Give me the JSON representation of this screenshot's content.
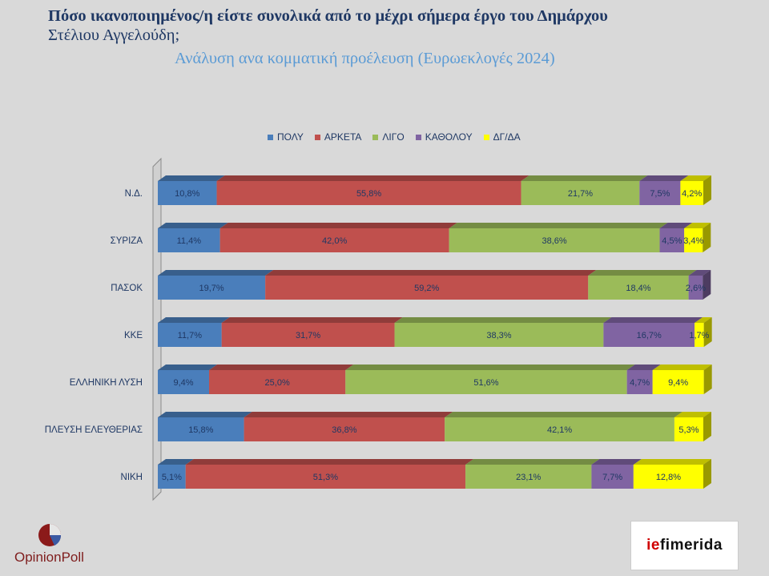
{
  "title_line1": "Πόσο ικανοποιημένος/η είστε συνολικά  από το μέχρι σήμερα έργο του Δημάρχου",
  "title_line2": "Στέλιου Αγγελούδη;",
  "subtitle": "Ανάλυση ανα κομματική προέλευση (Ευρωεκλογές 2024)",
  "logos": {
    "opinionpoll": "OpinionPoll",
    "iefimerida_prefix": "ie",
    "iefimerida_rest": "fimerida"
  },
  "chart_data": {
    "type": "bar",
    "orientation": "horizontal",
    "stacked": "percent",
    "categories": [
      "Ν.Δ.",
      "ΣΥΡΙΖΑ",
      "ΠΑΣΟΚ",
      "ΚΚΕ",
      "ΕΛΛΗΝΙΚΗ ΛΥΣΗ",
      "ΠΛΕΥΣΗ ΕΛΕΥΘΕΡΙΑΣ",
      "ΝΙΚΗ"
    ],
    "legend_position": "top",
    "series": [
      {
        "name": "ΠΟΛΥ",
        "color": "#4a7ebb",
        "values": [
          10.8,
          11.4,
          19.7,
          11.7,
          9.4,
          15.8,
          5.1
        ],
        "labels": [
          "10,8%",
          "11,4%",
          "19,7%",
          "11,7%",
          "9,4%",
          "15,8%",
          "5,1%"
        ]
      },
      {
        "name": "ΑΡΚΕΤΑ",
        "color": "#c0504d",
        "values": [
          55.8,
          42.0,
          59.2,
          31.7,
          25.0,
          36.8,
          51.3
        ],
        "labels": [
          "55,8%",
          "42,0%",
          "59,2%",
          "31,7%",
          "25,0%",
          "36,8%",
          "51,3%"
        ]
      },
      {
        "name": "ΛΙΓΟ",
        "color": "#9bbb59",
        "values": [
          21.7,
          38.6,
          18.4,
          38.3,
          51.6,
          42.1,
          23.1
        ],
        "labels": [
          "21,7%",
          "38,6%",
          "18,4%",
          "38,3%",
          "51,6%",
          "42,1%",
          "23,1%"
        ]
      },
      {
        "name": "ΚΑΘΟΛΟΥ",
        "color": "#8064a2",
        "values": [
          7.5,
          4.5,
          2.6,
          16.7,
          4.7,
          0,
          7.7
        ],
        "labels": [
          "7,5%",
          "4,5%",
          "2,6%",
          "16,7%",
          "4,7%",
          "",
          "7,7%"
        ]
      },
      {
        "name": "ΔΓ/ΔΑ",
        "color": "#ffff00",
        "values": [
          4.2,
          3.4,
          0,
          1.7,
          9.4,
          5.3,
          12.8
        ],
        "labels": [
          "4,2%",
          "3,4%",
          "",
          "1,7%",
          "9,4%",
          "5,3%",
          "12,8%"
        ]
      }
    ]
  }
}
